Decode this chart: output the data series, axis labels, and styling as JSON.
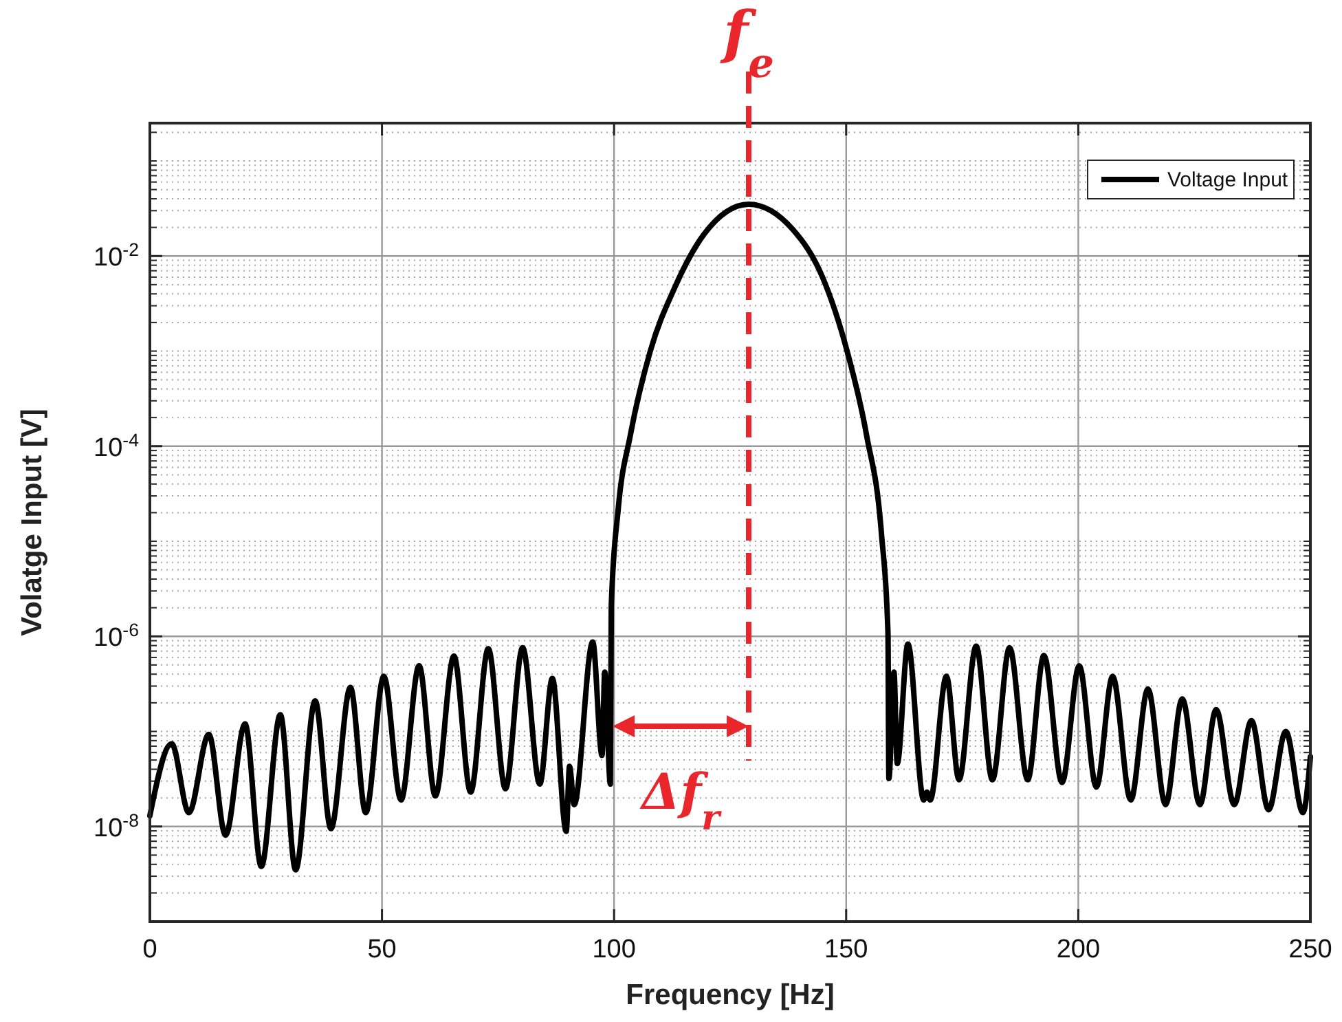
{
  "chart_data": {
    "type": "line",
    "xlabel": "Frequency [Hz]",
    "ylabel": "Volatge Input [V]",
    "xlim": [
      0,
      250
    ],
    "xticks": [
      0,
      50,
      100,
      150,
      200,
      250
    ],
    "ylim": [
      1e-09,
      0.25
    ],
    "yticks": [
      {
        "value": 1e-08,
        "label": "10$^{-8}$"
      },
      {
        "value": 1e-06,
        "label": "10$^{-6}$"
      },
      {
        "value": 0.0001,
        "label": "10$^{-4}$"
      },
      {
        "value": 0.01,
        "label": "10$^{-2}$"
      }
    ],
    "log": "y",
    "grid": true,
    "legend": "top right",
    "marker": "none",
    "line_style": "solid",
    "series": [
      {
        "name": "Voltage Input",
        "color": "#000000",
        "x": [
          0,
          4.7,
          8.4,
          12.7,
          16.3,
          20.5,
          24.0,
          28.1,
          31.4,
          35.6,
          39.0,
          43.2,
          46.5,
          50.4,
          54.1,
          58.0,
          61.5,
          65.5,
          69.1,
          72.9,
          76.6,
          80.3,
          84.0,
          86.7,
          89.7,
          90.4,
          91.4,
          95.4,
          97.4,
          98.0,
          99.2,
          99.4,
          100.9,
          103.5,
          107.8,
          113.1,
          119.4,
          129.0,
          138.5,
          144.9,
          150.2,
          154.4,
          157.6,
          159.0,
          159.2,
          160.3,
          161.0,
          163.3,
          166.7,
          167.4,
          168.1,
          171.6,
          174.3,
          178.0,
          181.5,
          185.2,
          189.1,
          192.6,
          196.5,
          200.2,
          203.9,
          207.4,
          211.3,
          215.0,
          218.8,
          222.4,
          226.2,
          229.7,
          233.6,
          237.3,
          241.0,
          244.7,
          248.4,
          250
        ],
        "values": [
          1.3e-08,
          7.4e-08,
          1.4e-08,
          9.3e-08,
          8.1e-09,
          1.2e-07,
          3.8e-09,
          1.5e-07,
          3.5e-09,
          2.1e-07,
          9.5e-09,
          2.9e-07,
          1.4e-08,
          3.8e-07,
          1.9e-08,
          4.9e-07,
          2.1e-08,
          6.2e-07,
          2.3e-08,
          7.4e-07,
          2.5e-08,
          7.6e-07,
          2.8e-08,
          3.6e-07,
          8.9e-09,
          4.3e-08,
          1.7e-08,
          8.7e-07,
          5.6e-08,
          4.2e-07,
          2.8e-08,
          2.1e-06,
          2.2e-05,
          0.00013,
          0.001,
          0.0047,
          0.017,
          0.035,
          0.019,
          0.006,
          0.001,
          0.00013,
          1.2e-05,
          1.1e-06,
          3.2e-08,
          4.2e-07,
          4.6e-08,
          8.3e-07,
          1.9e-08,
          2.3e-08,
          1.9e-08,
          3.8e-07,
          3.1e-08,
          7.9e-07,
          3.1e-08,
          7.6e-07,
          3.1e-08,
          6.3e-07,
          2.9e-08,
          4.9e-07,
          2.6e-08,
          3.8e-07,
          1.9e-08,
          2.8e-07,
          1.7e-08,
          2.2e-07,
          1.7e-08,
          1.7e-07,
          1.7e-08,
          1.3e-07,
          1.5e-08,
          1e-07,
          1.4e-08,
          5.4e-08
        ]
      }
    ],
    "ref_lines": [
      {
        "axis": "x",
        "value": 129,
        "label": "f$_{e}$",
        "color": "#e8262b",
        "line_style": "dashed"
      }
    ],
    "annotations": [
      "Δf$_{r}$"
    ]
  }
}
